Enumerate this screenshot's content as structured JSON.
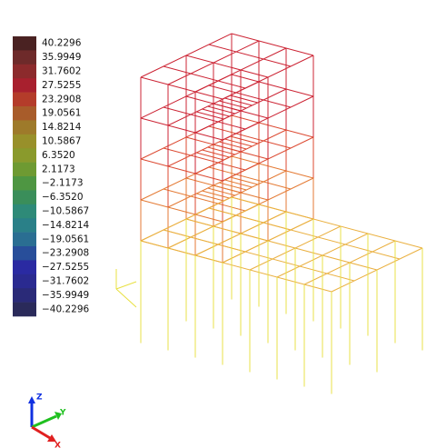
{
  "legend": [
    {
      "label": "40.2296",
      "color": "#4a2222"
    },
    {
      "label": "35.9949",
      "color": "#6e2a2a"
    },
    {
      "label": "31.7602",
      "color": "#8c2a2c"
    },
    {
      "label": "27.5255",
      "color": "#a8202e"
    },
    {
      "label": "23.2908",
      "color": "#b43c2a"
    },
    {
      "label": "19.0561",
      "color": "#a85c2a"
    },
    {
      "label": "14.8214",
      "color": "#9e7a2a"
    },
    {
      "label": "10.5867",
      "color": "#98902a"
    },
    {
      "label": "6.3520",
      "color": "#8a9a2c"
    },
    {
      "label": "2.1173",
      "color": "#6e9a32"
    },
    {
      "label": "−2.1173",
      "color": "#4e9642"
    },
    {
      "label": "−6.3520",
      "color": "#3a8e5a"
    },
    {
      "label": "−10.5867",
      "color": "#2e8a78"
    },
    {
      "label": "−14.8214",
      "color": "#2a8088"
    },
    {
      "label": "−19.0561",
      "color": "#2a6e92"
    },
    {
      "label": "−23.2908",
      "color": "#284e9a"
    },
    {
      "label": "−27.5255",
      "color": "#2a2aa2"
    },
    {
      "label": "−31.7602",
      "color": "#2a2a90"
    },
    {
      "label": "−35.9949",
      "color": "#2a2a78"
    },
    {
      "label": "−40.2296",
      "color": "#2a2a5a"
    }
  ],
  "triad": {
    "z": "Z",
    "y": "Y",
    "x": "X"
  }
}
